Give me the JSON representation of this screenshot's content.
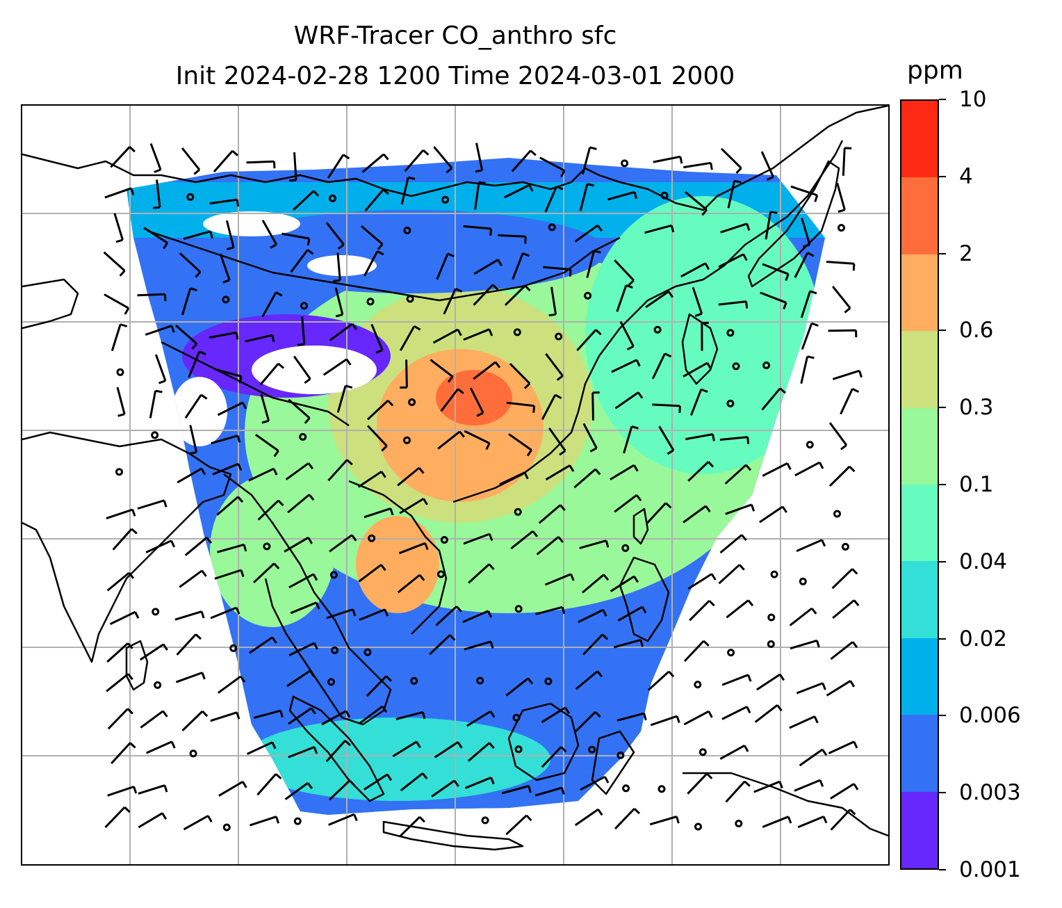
{
  "title": {
    "line1": "WRF-Tracer CO_anthro sfc",
    "line2": "Init 2024-02-28 1200 Time 2024-03-01 2000"
  },
  "colorbar": {
    "unit": "ppm",
    "levels": [
      "10",
      "4",
      "2",
      "0.6",
      "0.3",
      "0.1",
      "0.04",
      "0.02",
      "0.006",
      "0.003",
      "0.001"
    ],
    "colors": [
      "#ff2a14",
      "#ff6e3a",
      "#ffae60",
      "#cce17e",
      "#99f899",
      "#66fcc0",
      "#33dfd6",
      "#00b0eb",
      "#3372f4",
      "#6628fc"
    ]
  },
  "map": {
    "land_color": "#ffffff",
    "coastline_color": "#000000",
    "grid_color": "#b0b0b0",
    "no_data_color": "#ffffff"
  }
}
